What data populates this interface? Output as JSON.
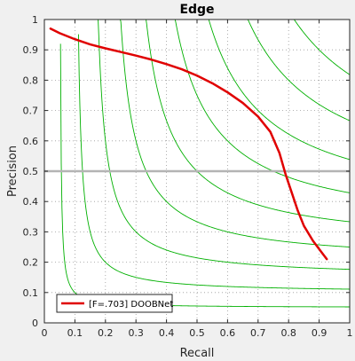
{
  "chart_data": {
    "type": "line",
    "title": "Edge",
    "xlabel": "Recall",
    "ylabel": "Precision",
    "xlim": [
      0,
      1
    ],
    "ylim": [
      0,
      1
    ],
    "xticks": [
      "0",
      "0.1",
      "0.2",
      "0.3",
      "0.4",
      "0.5",
      "0.6",
      "0.7",
      "0.8",
      "0.9",
      "1"
    ],
    "yticks": [
      "0",
      "0.1",
      "0.2",
      "0.3",
      "0.4",
      "0.5",
      "0.6",
      "0.7",
      "0.8",
      "0.9",
      "1"
    ],
    "grid": true,
    "legend_position": "bottom-left",
    "reference_line": {
      "y": 0.5,
      "color": "#b4b4b4"
    },
    "iso_f_curves": {
      "color": "#00b000",
      "f_values": [
        0.1,
        0.2,
        0.3,
        0.4,
        0.5,
        0.6,
        0.7,
        0.8,
        0.9
      ]
    },
    "series": [
      {
        "name": "[F=.703] DOOBNet",
        "color": "#e00000",
        "x": [
          0.02,
          0.05,
          0.1,
          0.15,
          0.2,
          0.25,
          0.3,
          0.35,
          0.4,
          0.45,
          0.5,
          0.55,
          0.6,
          0.65,
          0.7,
          0.74,
          0.77,
          0.79,
          0.81,
          0.83,
          0.85,
          0.88,
          0.91,
          0.925
        ],
        "y": [
          0.97,
          0.955,
          0.935,
          0.918,
          0.905,
          0.893,
          0.881,
          0.868,
          0.853,
          0.836,
          0.815,
          0.79,
          0.76,
          0.725,
          0.68,
          0.63,
          0.56,
          0.49,
          0.43,
          0.37,
          0.32,
          0.27,
          0.23,
          0.21
        ]
      }
    ]
  }
}
